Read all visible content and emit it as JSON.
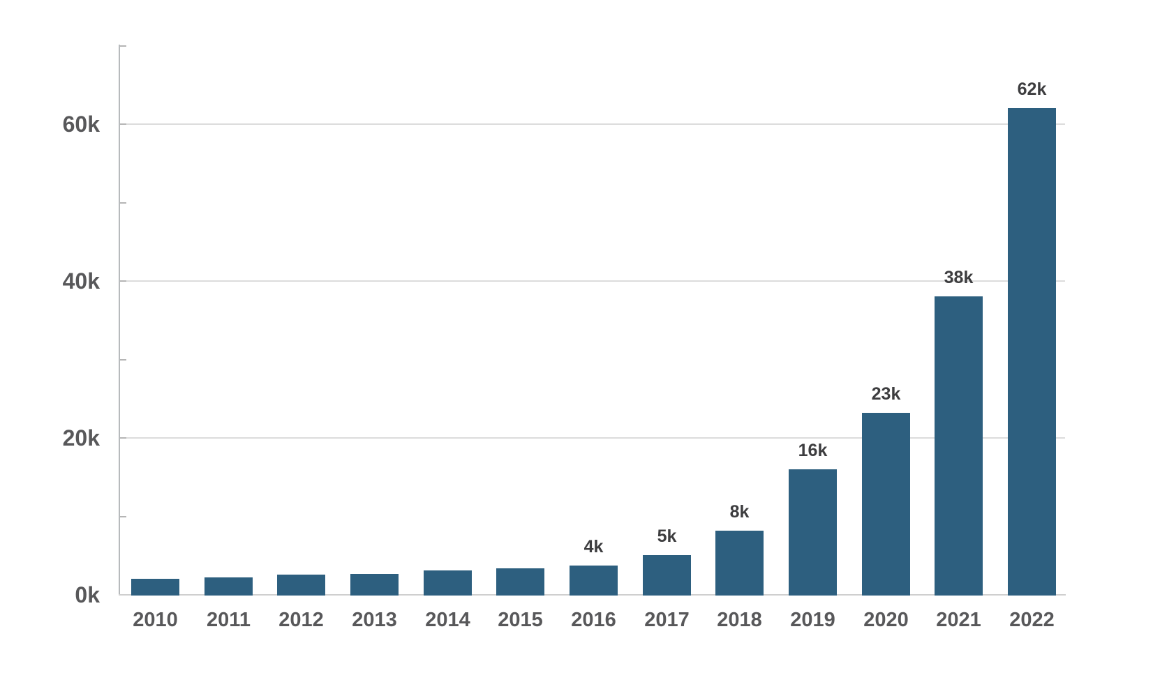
{
  "chart_data": {
    "type": "bar",
    "title": "",
    "xlabel": "",
    "ylabel": "",
    "categories": [
      "2010",
      "2011",
      "2012",
      "2013",
      "2014",
      "2015",
      "2016",
      "2017",
      "2018",
      "2019",
      "2020",
      "2021",
      "2022"
    ],
    "values": [
      2.0,
      2.2,
      2.6,
      2.7,
      3.1,
      3.4,
      3.7,
      5.1,
      8.2,
      16,
      23.2,
      38,
      62
    ],
    "unit": "thousands (k)",
    "bar_value_labels": [
      "",
      "",
      "",
      "",
      "",
      "",
      "4k",
      "5k",
      "8k",
      "16k",
      "23k",
      "38k",
      "62k"
    ],
    "y_tick_labels": [
      "0k",
      "20k",
      "40k",
      "60k"
    ],
    "y_tick_values": [
      0,
      20,
      40,
      60
    ],
    "y_minor_tick_step": 10,
    "ylim": [
      0,
      70
    ],
    "grid": "horizontal gridlines at labeled ticks only",
    "legend": "none"
  },
  "colors": {
    "background": "#ffffff",
    "bar_fill": "#2d5f7f",
    "axis_line": "#b7babc",
    "tick_mark": "#b5b5b5",
    "gridline": "#dcdcdc",
    "baseline": "#cfcfcf",
    "axis_tick_label": "#58585a",
    "bar_value_label": "#3d3d3f"
  }
}
